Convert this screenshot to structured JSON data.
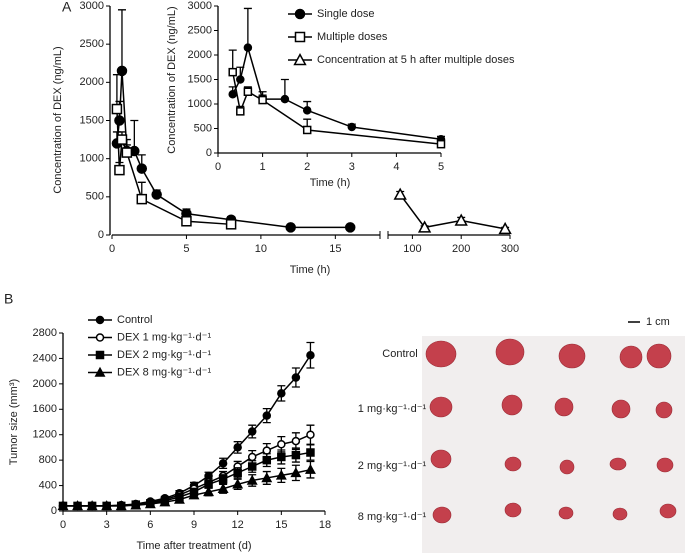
{
  "panel_labels": [
    "A",
    "B"
  ],
  "chart_data": [
    {
      "type": "line",
      "y_label": "Concentration of DEX (ng/mL)",
      "x_label": "Time (h)",
      "xlim": [
        [
          0,
          18
        ],
        [
          50,
          300
        ]
      ],
      "xticks": [
        [
          0,
          5,
          10,
          15
        ],
        [
          100,
          200,
          300
        ]
      ],
      "ylim": [
        0,
        3000
      ],
      "yticks": [
        0,
        500,
        1000,
        1500,
        2000,
        2500,
        3000
      ],
      "legend": "upper right",
      "error_direction": "up",
      "series": [
        {
          "name": "Single dose",
          "color": "#000000",
          "marker": "circle",
          "filled": true,
          "x": [
            0.33,
            0.5,
            0.67,
            1,
            1.5,
            2,
            3,
            5,
            8,
            12,
            16
          ],
          "values": [
            1200,
            1500,
            2150,
            1100,
            1100,
            870,
            530,
            280,
            200,
            100,
            100
          ],
          "errors": [
            150,
            250,
            800,
            150,
            400,
            180,
            60,
            60,
            40,
            15,
            15
          ]
        },
        {
          "name": "Multiple doses",
          "color": "#000000",
          "marker": "square",
          "filled": false,
          "x": [
            0.33,
            0.5,
            0.67,
            1,
            2,
            5,
            8
          ],
          "values": [
            1650,
            850,
            1250,
            1080,
            470,
            180,
            140
          ],
          "errors": [
            450,
            100,
            100,
            100,
            220,
            90,
            30
          ]
        },
        {
          "name": "Concentration at 5 h after multiple doses",
          "color": "#000000",
          "marker": "triangle",
          "filled": false,
          "x": [
            75,
            125,
            200,
            290
          ],
          "values": [
            530,
            100,
            190,
            80
          ],
          "errors": [
            40,
            20,
            40,
            20
          ]
        }
      ]
    },
    {
      "type": "line",
      "y_label": "Concentration of DEX (ng/mL)",
      "x_label": "Time (h)",
      "xlim": [
        0,
        5
      ],
      "xticks": [
        0,
        1,
        2,
        3,
        4,
        5
      ],
      "ylim": [
        0,
        3000
      ],
      "yticks": [
        0,
        500,
        1000,
        1500,
        2000,
        2500,
        3000
      ],
      "error_direction": "up",
      "series": [
        {
          "color": "#000000",
          "marker": "circle",
          "filled": true,
          "x": [
            0.33,
            0.5,
            0.67,
            1,
            1.5,
            2,
            3,
            5
          ],
          "values": [
            1200,
            1500,
            2150,
            1100,
            1100,
            870,
            530,
            280
          ],
          "errors": [
            150,
            250,
            800,
            150,
            400,
            180,
            60,
            60
          ]
        },
        {
          "color": "#000000",
          "marker": "square",
          "filled": false,
          "x": [
            0.33,
            0.5,
            0.67,
            1,
            2,
            5
          ],
          "values": [
            1650,
            850,
            1250,
            1080,
            470,
            180
          ],
          "errors": [
            450,
            100,
            100,
            100,
            220,
            90
          ]
        }
      ]
    },
    {
      "type": "line",
      "y_label": "Tumor size (mm³)",
      "x_label": "Time after treatment (d)",
      "xlim": [
        0,
        18
      ],
      "xticks": [
        0,
        3,
        6,
        9,
        12,
        15,
        18
      ],
      "ylim": [
        0,
        2800
      ],
      "yticks": [
        0,
        400,
        800,
        1200,
        1600,
        2000,
        2400,
        2800
      ],
      "legend": "upper left",
      "error_direction": "both",
      "series": [
        {
          "name": "Control",
          "color": "#000000",
          "marker": "circle",
          "filled": true,
          "x": [
            0,
            1,
            2,
            3,
            4,
            5,
            6,
            7,
            8,
            9,
            10,
            11,
            12,
            13,
            14,
            15,
            16,
            17
          ],
          "values": [
            80,
            80,
            80,
            80,
            90,
            110,
            150,
            200,
            280,
            400,
            550,
            750,
            1000,
            1250,
            1500,
            1850,
            2100,
            2450
          ],
          "errors": [
            10,
            10,
            10,
            10,
            15,
            20,
            25,
            30,
            40,
            50,
            60,
            80,
            90,
            100,
            110,
            120,
            150,
            200
          ]
        },
        {
          "name": "DEX 1 mg·kg⁻¹·d⁻¹",
          "color": "#000000",
          "marker": "circle",
          "filled": false,
          "x": [
            0,
            1,
            2,
            3,
            4,
            5,
            6,
            7,
            8,
            9,
            10,
            11,
            12,
            13,
            14,
            15,
            16,
            17
          ],
          "values": [
            80,
            80,
            80,
            80,
            90,
            100,
            130,
            180,
            250,
            350,
            450,
            550,
            700,
            850,
            950,
            1050,
            1100,
            1200
          ],
          "errors": [
            10,
            10,
            10,
            10,
            15,
            20,
            25,
            30,
            40,
            50,
            60,
            70,
            80,
            100,
            110,
            120,
            130,
            150
          ]
        },
        {
          "name": "DEX 2 mg·kg⁻¹·d⁻¹",
          "color": "#000000",
          "marker": "square",
          "filled": true,
          "x": [
            0,
            1,
            2,
            3,
            4,
            5,
            6,
            7,
            8,
            9,
            10,
            11,
            12,
            13,
            14,
            15,
            16,
            17
          ],
          "values": [
            80,
            80,
            80,
            80,
            80,
            100,
            120,
            160,
            220,
            300,
            420,
            500,
            600,
            700,
            800,
            850,
            880,
            920
          ],
          "errors": [
            10,
            10,
            10,
            10,
            15,
            20,
            25,
            30,
            40,
            50,
            60,
            70,
            80,
            90,
            100,
            110,
            110,
            120
          ]
        },
        {
          "name": "DEX 8 mg·kg⁻¹·d⁻¹",
          "color": "#000000",
          "marker": "triangle",
          "filled": true,
          "x": [
            0,
            1,
            2,
            3,
            4,
            5,
            6,
            7,
            8,
            9,
            10,
            11,
            12,
            13,
            14,
            15,
            16,
            17
          ],
          "values": [
            80,
            80,
            80,
            80,
            80,
            90,
            110,
            140,
            180,
            250,
            300,
            350,
            420,
            480,
            520,
            560,
            600,
            650
          ],
          "errors": [
            10,
            10,
            10,
            10,
            15,
            20,
            25,
            30,
            40,
            50,
            60,
            70,
            80,
            90,
            100,
            110,
            120,
            130
          ]
        }
      ]
    }
  ],
  "photo": {
    "scale_bar": "1 cm",
    "row_labels": [
      "Control",
      "1 mg·kg⁻¹·d⁻¹",
      "2 mg·kg⁻¹·d⁻¹",
      "8 mg·kg⁻¹·d⁻¹"
    ]
  }
}
